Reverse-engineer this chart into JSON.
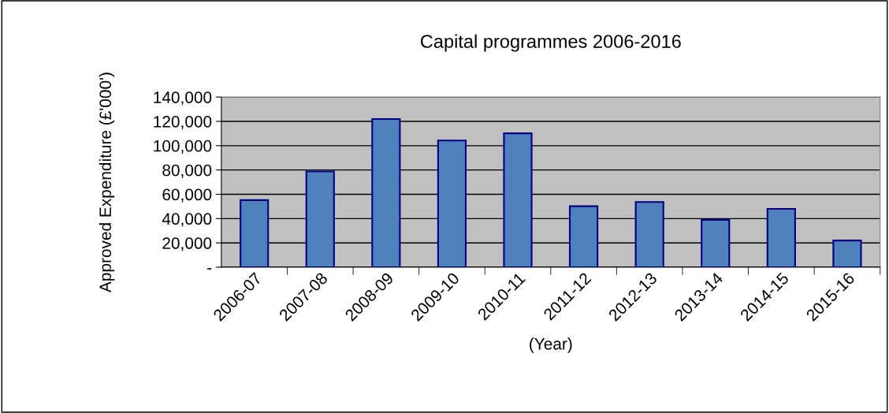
{
  "chart_data": {
    "type": "bar",
    "title": "Capital programmes 2006-2016",
    "xlabel": "(Year)",
    "ylabel": "Approved Expenditure (£'000')",
    "categories": [
      "2006-07",
      "2007-08",
      "2008-09",
      "2009-10",
      "2010-11",
      "2011-12",
      "2012-13",
      "2013-14",
      "2014-15",
      "2015-16"
    ],
    "values": [
      55200,
      78800,
      121900,
      104300,
      110200,
      50200,
      53700,
      39000,
      48000,
      22000
    ],
    "color": "#4f81bd",
    "ylim": [
      0,
      140000
    ],
    "yticks": [
      {
        "value": 0,
        "label": "-"
      },
      {
        "value": 20000,
        "label": "20,000"
      },
      {
        "value": 40000,
        "label": "40,000"
      },
      {
        "value": 60000,
        "label": "60,000"
      },
      {
        "value": 80000,
        "label": "80,000"
      },
      {
        "value": 100000,
        "label": "100,000"
      },
      {
        "value": 120000,
        "label": "120,000"
      },
      {
        "value": 140000,
        "label": "140,000"
      }
    ],
    "grid": "y",
    "legend": false
  }
}
